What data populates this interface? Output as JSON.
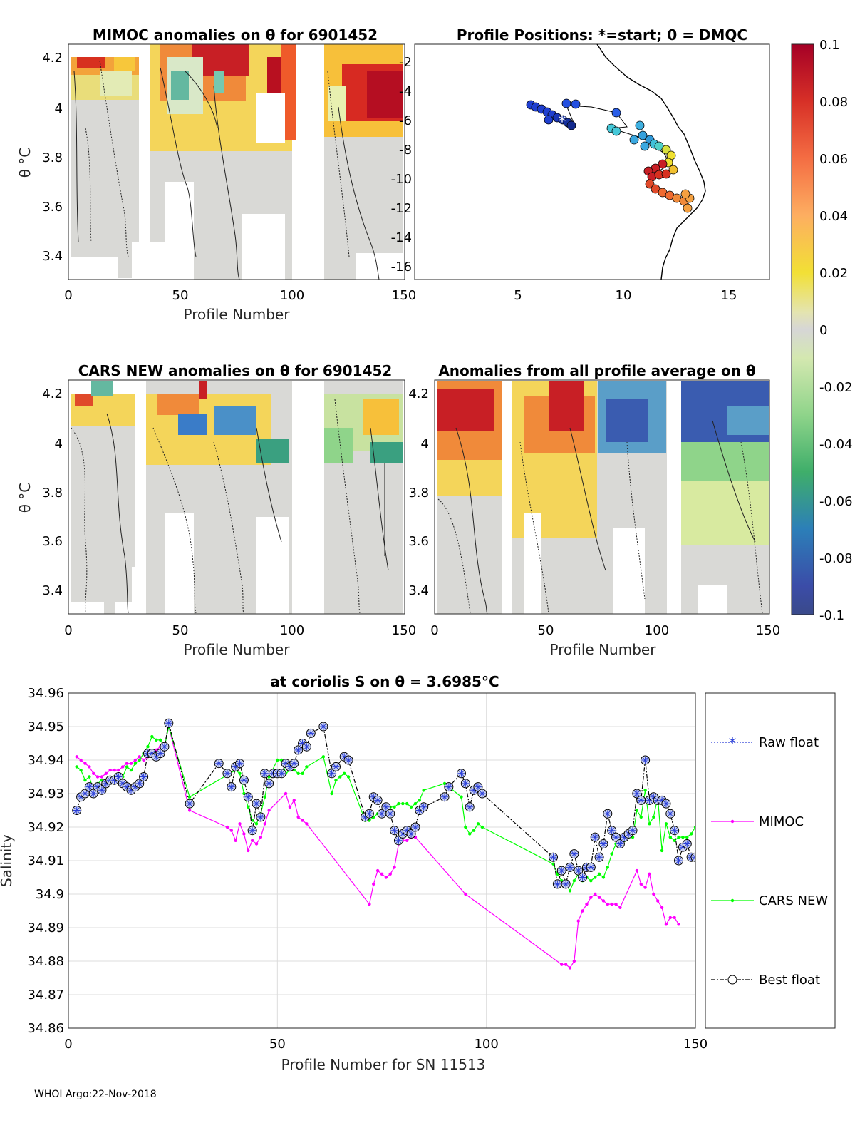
{
  "footer": "WHOI Argo:22-Nov-2018",
  "colorbar": {
    "ticks": [
      "0.1",
      "0.08",
      "0.06",
      "0.04",
      "0.02",
      "0",
      "-0.02",
      "-0.04",
      "-0.06",
      "-0.08",
      "-0.1"
    ]
  },
  "panels": {
    "mimoc": {
      "title": "MIMOC anomalies on θ  for 6901452",
      "xlabel": "Profile Number",
      "ylabel": "θ °C",
      "xticks": [
        "0",
        "50",
        "100",
        "150"
      ],
      "yticks": [
        "4.2",
        "4",
        "3.8",
        "3.6",
        "3.4"
      ]
    },
    "positions": {
      "title": "Profile Positions: *=start; 0 = DMQC",
      "xticks": [
        "5",
        "10",
        "15"
      ],
      "yticks": [
        "-2",
        "-4",
        "-6",
        "-8",
        "-10",
        "-12",
        "-14",
        "-16"
      ]
    },
    "cars": {
      "title": "CARS NEW anomalies on θ for 6901452",
      "xlabel": "Profile Number",
      "ylabel": "θ °C",
      "xticks": [
        "0",
        "50",
        "100",
        "150"
      ],
      "yticks": [
        "4.2",
        "4",
        "3.8",
        "3.6",
        "3.4"
      ]
    },
    "allavg": {
      "title": "Anomalies from all profile average on θ",
      "xlabel": "Profile Number",
      "xticks": [
        "0",
        "50",
        "100",
        "150"
      ],
      "yticks": [
        "4.2",
        "4",
        "3.8",
        "3.6",
        "3.4"
      ]
    }
  },
  "chart_data": {
    "type": "line",
    "title": "at coriolis S on θ = 3.6985°C",
    "xlabel": "Profile Number for SN 11513",
    "ylabel": "Salinity",
    "xlim": [
      0,
      150
    ],
    "ylim": [
      34.86,
      34.96
    ],
    "xticks": [
      "0",
      "50",
      "100",
      "150"
    ],
    "yticks": [
      "34.96",
      "34.95",
      "34.94",
      "34.93",
      "34.92",
      "34.91",
      "34.9",
      "34.89",
      "34.88",
      "34.87",
      "34.86"
    ],
    "legend": [
      "Raw float",
      "MIMOC",
      "CARS NEW",
      "Best float"
    ],
    "series": [
      {
        "name": "Best float",
        "color": "#000000",
        "x": [
          2,
          3,
          4,
          5,
          6,
          7,
          8,
          9,
          10,
          11,
          12,
          13,
          14,
          15,
          16,
          17,
          18,
          19,
          20,
          21,
          22,
          23,
          24,
          29,
          36,
          38,
          39,
          40,
          41,
          42,
          43,
          44,
          45,
          46,
          47,
          48,
          49,
          50,
          51,
          52,
          53,
          54,
          55,
          56,
          57,
          58,
          61,
          63,
          64,
          66,
          67,
          71,
          72,
          73,
          74,
          75,
          76,
          77,
          78,
          79,
          80,
          81,
          82,
          83,
          84,
          85,
          90,
          91,
          94,
          95,
          96,
          97,
          98,
          99,
          116,
          117,
          118,
          119,
          120,
          121,
          122,
          123,
          124,
          125,
          126,
          127,
          128,
          129,
          130,
          131,
          132,
          133,
          134,
          135,
          136,
          137,
          138,
          139,
          140,
          141,
          142,
          143,
          144,
          145,
          146,
          147,
          148,
          149,
          150
        ],
        "y": [
          34.925,
          34.929,
          34.93,
          34.932,
          34.93,
          34.932,
          34.931,
          34.933,
          34.934,
          34.934,
          34.935,
          34.933,
          34.932,
          34.931,
          34.932,
          34.933,
          34.935,
          34.942,
          34.942,
          34.941,
          34.942,
          34.944,
          34.951,
          34.927,
          34.939,
          34.936,
          34.932,
          34.938,
          34.939,
          34.934,
          34.929,
          34.919,
          34.927,
          34.923,
          34.936,
          34.933,
          34.936,
          34.936,
          34.936,
          34.939,
          34.938,
          34.939,
          34.943,
          34.945,
          34.944,
          34.948,
          34.95,
          34.936,
          34.938,
          34.941,
          34.94,
          34.923,
          34.924,
          34.929,
          34.928,
          34.924,
          34.926,
          34.924,
          34.919,
          34.916,
          34.918,
          34.919,
          34.918,
          34.92,
          34.925,
          34.926,
          34.929,
          34.932,
          34.936,
          34.933,
          34.926,
          34.931,
          34.932,
          34.93,
          34.911,
          34.903,
          34.907,
          34.903,
          34.908,
          34.912,
          34.907,
          34.905,
          34.908,
          34.908,
          34.917,
          34.911,
          34.915,
          34.924,
          34.919,
          34.917,
          34.915,
          34.917,
          34.918,
          34.919,
          34.93,
          34.928,
          34.94,
          34.928,
          34.929,
          34.928,
          34.928,
          34.927,
          34.924,
          34.919,
          34.91,
          34.914,
          34.915,
          34.911,
          34.911
        ]
      },
      {
        "name": "MIMOC",
        "color": "#ff00ff",
        "x": [
          2,
          3,
          4,
          5,
          6,
          7,
          8,
          9,
          10,
          11,
          12,
          13,
          14,
          15,
          16,
          17,
          18,
          19,
          20,
          21,
          22,
          23,
          24,
          29,
          38,
          39,
          40,
          41,
          42,
          43,
          44,
          45,
          46,
          47,
          48,
          52,
          53,
          54,
          55,
          56,
          57,
          72,
          73,
          74,
          75,
          76,
          77,
          78,
          79,
          80,
          81,
          82,
          83,
          95,
          118,
          119,
          120,
          121,
          122,
          123,
          124,
          125,
          126,
          127,
          128,
          129,
          130,
          131,
          132,
          136,
          137,
          138,
          139,
          140,
          141,
          142,
          143,
          144,
          145,
          146
        ],
        "y": [
          34.941,
          34.94,
          34.939,
          34.938,
          34.936,
          34.935,
          34.935,
          34.936,
          34.937,
          34.937,
          34.937,
          34.938,
          34.939,
          34.939,
          34.94,
          34.941,
          34.94,
          34.941,
          34.942,
          34.943,
          34.944,
          34.944,
          34.95,
          34.925,
          34.92,
          34.919,
          34.916,
          34.921,
          34.918,
          34.913,
          34.916,
          34.915,
          34.917,
          34.921,
          34.925,
          34.93,
          34.926,
          34.928,
          34.923,
          34.922,
          34.921,
          34.897,
          34.903,
          34.907,
          34.906,
          34.905,
          34.906,
          34.908,
          34.915,
          34.916,
          34.916,
          34.917,
          34.917,
          34.9,
          34.879,
          34.879,
          34.878,
          34.88,
          34.892,
          34.895,
          34.897,
          34.899,
          34.9,
          34.899,
          34.898,
          34.897,
          34.897,
          34.897,
          34.896,
          34.907,
          34.903,
          34.902,
          34.906,
          34.9,
          34.898,
          34.896,
          34.891,
          34.893,
          34.893,
          34.891
        ]
      },
      {
        "name": "CARS NEW",
        "color": "#00ff00",
        "x": [
          2,
          3,
          4,
          5,
          6,
          7,
          8,
          9,
          10,
          11,
          12,
          13,
          14,
          15,
          16,
          17,
          18,
          19,
          20,
          21,
          22,
          23,
          24,
          29,
          40,
          41,
          42,
          43,
          44,
          45,
          46,
          47,
          48,
          50,
          51,
          52,
          53,
          54,
          55,
          56,
          57,
          61,
          63,
          64,
          65,
          66,
          67,
          71,
          72,
          73,
          74,
          75,
          76,
          77,
          78,
          79,
          80,
          81,
          82,
          83,
          84,
          85,
          90,
          91,
          94,
          95,
          96,
          97,
          98,
          99,
          116,
          117,
          118,
          119,
          120,
          121,
          122,
          123,
          124,
          125,
          126,
          127,
          128,
          129,
          130,
          131,
          132,
          133,
          134,
          135,
          136,
          137,
          138,
          139,
          140,
          141,
          142,
          143,
          144,
          145,
          146,
          147,
          148,
          149,
          150
        ],
        "y": [
          34.938,
          34.937,
          34.934,
          34.935,
          34.931,
          34.933,
          34.934,
          34.933,
          34.934,
          34.935,
          34.934,
          34.935,
          34.938,
          34.937,
          34.939,
          34.94,
          34.942,
          34.944,
          34.947,
          34.946,
          34.946,
          34.944,
          34.95,
          34.929,
          34.937,
          34.936,
          34.93,
          34.926,
          34.922,
          34.921,
          34.924,
          34.929,
          34.935,
          34.94,
          34.94,
          34.936,
          34.937,
          34.937,
          34.936,
          34.936,
          34.938,
          34.941,
          34.93,
          34.934,
          34.935,
          34.936,
          34.935,
          34.922,
          34.922,
          34.923,
          34.924,
          34.924,
          34.925,
          34.926,
          34.926,
          34.927,
          34.927,
          34.927,
          34.926,
          34.927,
          34.928,
          34.931,
          34.933,
          34.932,
          34.929,
          34.92,
          34.918,
          34.919,
          34.921,
          34.92,
          34.909,
          34.906,
          34.904,
          34.903,
          34.901,
          34.904,
          34.906,
          34.904,
          34.905,
          34.904,
          34.905,
          34.906,
          34.905,
          34.908,
          34.912,
          34.915,
          34.915,
          34.916,
          34.917,
          34.917,
          34.925,
          34.923,
          34.931,
          34.921,
          34.923,
          34.929,
          34.913,
          34.921,
          34.917,
          34.916,
          34.917,
          34.917,
          34.917,
          34.918,
          34.92
        ]
      }
    ]
  }
}
